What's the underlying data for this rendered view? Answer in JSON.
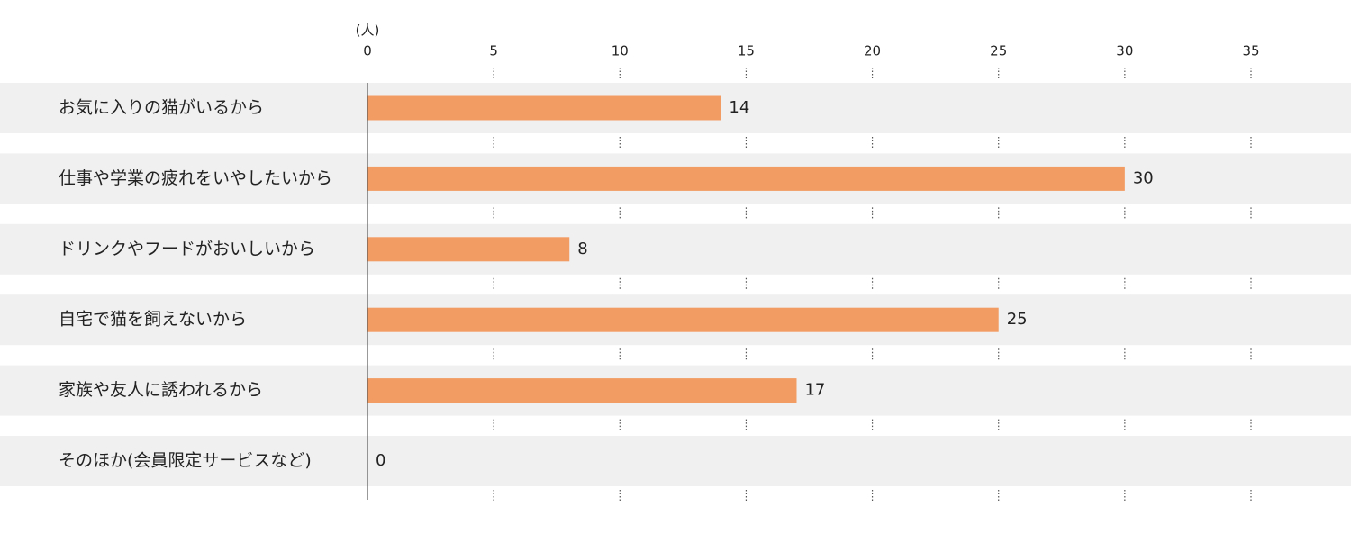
{
  "chart_data": {
    "type": "bar",
    "orientation": "horizontal",
    "unit_label": "(人)",
    "categories": [
      "お気に入りの猫がいるから",
      "仕事や学業の疲れをいやしたいから",
      "ドリンクやフードがおいしいから",
      "自宅で猫を飼えないから",
      "家族や友人に誘われるから",
      "そのほか(会員限定サービスなど)"
    ],
    "values": [
      14,
      30,
      8,
      25,
      17,
      0
    ],
    "color": "#f29c63",
    "xlim": [
      0,
      35
    ],
    "xticks": [
      0,
      5,
      10,
      15,
      20,
      25,
      30,
      35
    ]
  }
}
